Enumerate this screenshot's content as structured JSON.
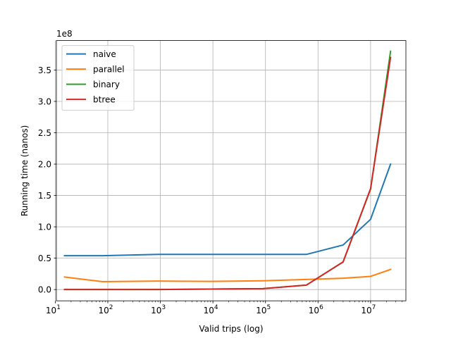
{
  "chart_data": {
    "type": "line",
    "xlabel": "Valid trips (log)",
    "ylabel": "Running time (nanos)",
    "x_scale": "log",
    "xlim": [
      10.5,
      47000000
    ],
    "ylim": [
      -18000000,
      397000000
    ],
    "y_offset_text": "1e8",
    "grid": true,
    "legend_position": "upper left",
    "x_ticks": [
      {
        "value": 10,
        "label_base": "10",
        "label_exp": "1"
      },
      {
        "value": 100,
        "label_base": "10",
        "label_exp": "2"
      },
      {
        "value": 1000,
        "label_base": "10",
        "label_exp": "3"
      },
      {
        "value": 10000,
        "label_base": "10",
        "label_exp": "4"
      },
      {
        "value": 100000,
        "label_base": "10",
        "label_exp": "5"
      },
      {
        "value": 1000000,
        "label_base": "10",
        "label_exp": "6"
      },
      {
        "value": 10000000,
        "label_base": "10",
        "label_exp": "7"
      }
    ],
    "y_ticks": [
      {
        "value": 0,
        "label": "0.0"
      },
      {
        "value": 50000000,
        "label": "0.5"
      },
      {
        "value": 100000000,
        "label": "1.0"
      },
      {
        "value": 150000000,
        "label": "1.5"
      },
      {
        "value": 200000000,
        "label": "2.0"
      },
      {
        "value": 250000000,
        "label": "2.5"
      },
      {
        "value": 300000000,
        "label": "3.0"
      },
      {
        "value": 350000000,
        "label": "3.5"
      }
    ],
    "x": [
      15,
      80,
      900,
      9000,
      90000,
      600000,
      3000000,
      10000000,
      24000000
    ],
    "series": [
      {
        "name": "naive",
        "color": "#1f77b4",
        "values": [
          54000000,
          54000000,
          56000000,
          56000000,
          56000000,
          56000000,
          71000000,
          112000000,
          200000000
        ]
      },
      {
        "name": "parallel",
        "color": "#ff7f0e",
        "values": [
          20000000,
          12500000,
          13500000,
          13000000,
          14000000,
          16000000,
          18000000,
          21000000,
          32000000
        ]
      },
      {
        "name": "binary",
        "color": "#2ca02c",
        "values": [
          0,
          0,
          0,
          800000,
          1500000,
          7000000,
          44000000,
          160000000,
          380000000
        ]
      },
      {
        "name": "btree",
        "color": "#d62728",
        "values": [
          0,
          0,
          0,
          800000,
          1500000,
          7000000,
          44000000,
          161000000,
          370000000
        ]
      }
    ]
  }
}
